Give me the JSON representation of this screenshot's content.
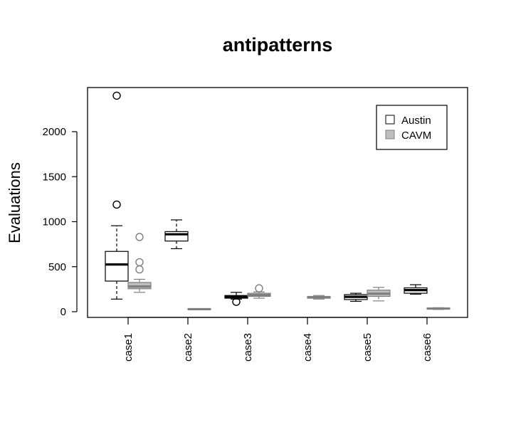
{
  "chart_data": {
    "type": "boxplot",
    "title": "antipatterns",
    "xlabel": "",
    "ylabel": "Evaluations",
    "ylim": [
      -60,
      2530
    ],
    "yticks": [
      0,
      500,
      1000,
      1500,
      2000
    ],
    "categories": [
      "case1",
      "case2",
      "case3",
      "case4",
      "case5",
      "case6"
    ],
    "legend": {
      "position": "top-right",
      "entries": [
        {
          "label": "Austin",
          "fill": "#ffffff",
          "stroke": "#000000"
        },
        {
          "label": "CAVM",
          "fill": "#bebebe",
          "stroke": "#7f7f7f"
        }
      ]
    },
    "series": [
      {
        "name": "Austin",
        "fill": "#ffffff",
        "stroke": "#000000",
        "boxes": [
          {
            "category": "case1",
            "min": 140,
            "q1": 340,
            "median": 525,
            "q3": 670,
            "max": 955,
            "outliers": [
              1190,
              2400
            ]
          },
          {
            "category": "case2",
            "min": 700,
            "q1": 785,
            "median": 860,
            "q3": 890,
            "max": 1020,
            "outliers": []
          },
          {
            "category": "case3",
            "min": 140,
            "q1": 150,
            "median": 165,
            "q3": 180,
            "max": 215,
            "outliers": [
              110
            ]
          },
          {
            "category": "case4",
            "min": null,
            "q1": null,
            "median": null,
            "q3": null,
            "max": null,
            "outliers": []
          },
          {
            "category": "case5",
            "min": 115,
            "q1": 135,
            "median": 165,
            "q3": 190,
            "max": 205,
            "outliers": []
          },
          {
            "category": "case6",
            "min": 195,
            "q1": 205,
            "median": 240,
            "q3": 265,
            "max": 300,
            "outliers": []
          }
        ]
      },
      {
        "name": "CAVM",
        "fill": "#bebebe",
        "stroke": "#7f7f7f",
        "boxes": [
          {
            "category": "case1",
            "min": 215,
            "q1": 255,
            "median": 280,
            "q3": 325,
            "max": 360,
            "outliers": [
              470,
              550,
              830
            ]
          },
          {
            "category": "case2",
            "min": 22,
            "q1": 25,
            "median": 28,
            "q3": 32,
            "max": 35,
            "outliers": []
          },
          {
            "category": "case3",
            "min": 150,
            "q1": 170,
            "median": 185,
            "q3": 205,
            "max": 220,
            "outliers": [
              260
            ]
          },
          {
            "category": "case4",
            "min": 140,
            "q1": 150,
            "median": 160,
            "q3": 170,
            "max": 180,
            "outliers": []
          },
          {
            "category": "case5",
            "min": 120,
            "q1": 170,
            "median": 200,
            "q3": 240,
            "max": 270,
            "outliers": []
          },
          {
            "category": "case6",
            "min": 25,
            "q1": 30,
            "median": 35,
            "q3": 40,
            "max": 45,
            "outliers": []
          }
        ]
      }
    ]
  }
}
